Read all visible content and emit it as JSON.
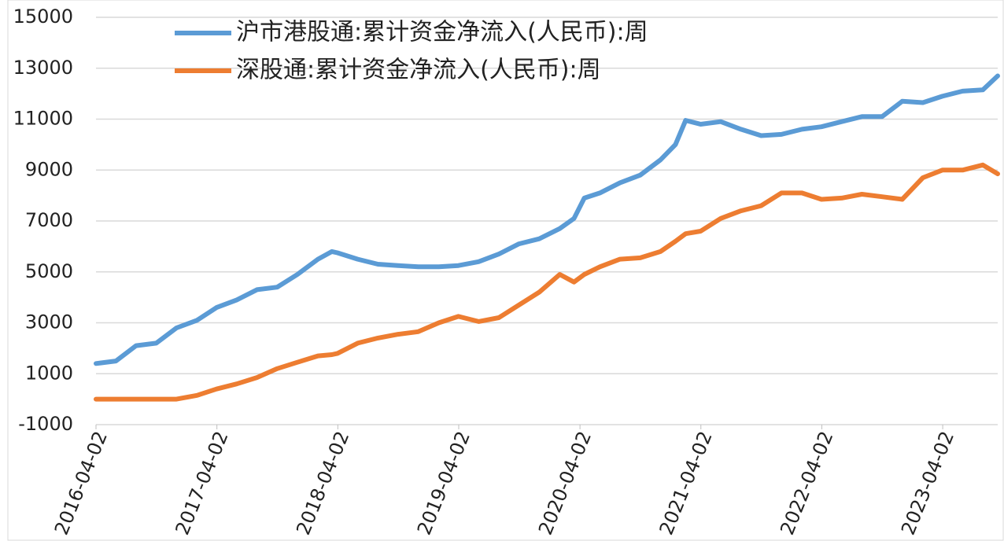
{
  "chart_data": {
    "type": "line",
    "x": [
      "2016-04-02",
      "2016-06-01",
      "2016-08-01",
      "2016-10-01",
      "2016-12-01",
      "2017-02-01",
      "2017-04-01",
      "2017-06-01",
      "2017-08-01",
      "2017-10-01",
      "2017-12-01",
      "2018-02-01",
      "2018-03-15",
      "2018-04-01",
      "2018-06-01",
      "2018-08-01",
      "2018-10-01",
      "2018-12-01",
      "2019-02-01",
      "2019-04-01",
      "2019-06-01",
      "2019-08-01",
      "2019-10-01",
      "2019-12-01",
      "2020-02-01",
      "2020-03-15",
      "2020-04-15",
      "2020-06-01",
      "2020-08-01",
      "2020-10-01",
      "2020-12-01",
      "2021-01-15",
      "2021-02-15",
      "2021-04-01",
      "2021-06-01",
      "2021-08-01",
      "2021-10-01",
      "2021-12-01",
      "2022-02-01",
      "2022-04-01",
      "2022-06-01",
      "2022-08-01",
      "2022-10-01",
      "2022-12-01",
      "2023-02-01",
      "2023-04-01",
      "2023-06-01",
      "2023-08-01",
      "2023-09-15"
    ],
    "series": [
      {
        "name": "沪市港股通:累计资金净流入(人民币):周",
        "color": "#5b9bd5",
        "values": [
          1400,
          1500,
          2100,
          2200,
          2800,
          3100,
          3600,
          3900,
          4300,
          4400,
          4900,
          5500,
          5800,
          5750,
          5500,
          5300,
          5250,
          5200,
          5200,
          5250,
          5400,
          5700,
          6100,
          6300,
          6700,
          7100,
          7900,
          8100,
          8500,
          8800,
          9400,
          10000,
          10950,
          10800,
          10900,
          10600,
          10350,
          10400,
          10600,
          10700,
          10900,
          11100,
          11100,
          11700,
          11650,
          11900,
          12100,
          12150,
          12700
        ]
      },
      {
        "name": "深股通:累计资金净流入(人民币):周",
        "color": "#ed7d31",
        "values": [
          0,
          0,
          0,
          0,
          0,
          150,
          400,
          600,
          850,
          1200,
          1450,
          1700,
          1750,
          1800,
          2200,
          2400,
          2550,
          2650,
          3000,
          3250,
          3050,
          3200,
          3700,
          4200,
          4900,
          4600,
          4900,
          5200,
          5500,
          5550,
          5800,
          6200,
          6500,
          6600,
          7100,
          7400,
          7600,
          8100,
          8100,
          7850,
          7900,
          8050,
          7950,
          7850,
          8700,
          9000,
          9000,
          9200,
          8850
        ]
      }
    ],
    "xlim": [
      "2016-04-02",
      "2023-09-15"
    ],
    "xticks": [
      "2016-04-02",
      "2017-04-02",
      "2018-04-02",
      "2019-04-02",
      "2020-04-02",
      "2021-04-02",
      "2022-04-02",
      "2023-04-02"
    ],
    "ylim": [
      -1000,
      15000
    ],
    "yticks": [
      -1000,
      1000,
      3000,
      5000,
      7000,
      9000,
      11000,
      13000,
      15000
    ],
    "grid": true
  }
}
